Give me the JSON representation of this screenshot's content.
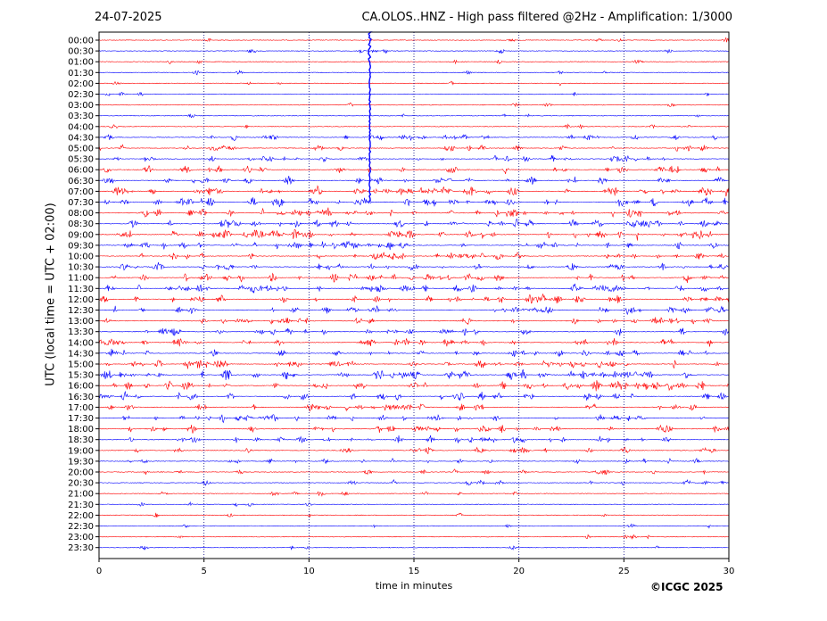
{
  "header": {
    "date": "24-07-2025",
    "title": "CA.OLOS..HNZ - High pass filtered @2Hz - Amplification: 1/3000"
  },
  "copyright": "©ICGC 2025",
  "chart_data": {
    "type": "line",
    "title": "CA.OLOS..HNZ - High pass filtered @2Hz - Amplification: 1/3000",
    "xlabel": "time in minutes",
    "ylabel": "UTC (local time = UTC + 02:00)",
    "xlim": [
      0,
      30
    ],
    "xticks": [
      0,
      5,
      10,
      15,
      20,
      25,
      30
    ],
    "vertical_gridlines": [
      5,
      10,
      15,
      20,
      25
    ],
    "trace_labels": [
      "00:00",
      "00:30",
      "01:00",
      "01:30",
      "02:00",
      "02:30",
      "03:00",
      "03:30",
      "04:00",
      "04:30",
      "05:00",
      "05:30",
      "06:00",
      "06:30",
      "07:00",
      "07:30",
      "08:00",
      "08:30",
      "09:00",
      "09:30",
      "10:00",
      "10:30",
      "11:00",
      "11:30",
      "12:00",
      "12:30",
      "13:00",
      "13:30",
      "14:00",
      "14:30",
      "15:00",
      "15:30",
      "16:00",
      "16:30",
      "17:00",
      "17:30",
      "18:00",
      "18:30",
      "19:00",
      "19:30",
      "20:00",
      "20:30",
      "21:00",
      "21:30",
      "22:00",
      "22:30",
      "23:00",
      "23:30"
    ],
    "colors": {
      "even_traces": "#ff0000",
      "odd_traces": "#0000ff",
      "grid": "#000080"
    },
    "activity": [
      0.1,
      0.15,
      0.1,
      0.1,
      0.1,
      0.1,
      0.1,
      0.1,
      0.15,
      0.5,
      0.5,
      0.6,
      0.7,
      0.7,
      1.0,
      1.0,
      1.0,
      0.8,
      1.0,
      0.8,
      0.7,
      0.7,
      0.8,
      0.9,
      0.8,
      0.7,
      0.6,
      0.6,
      0.7,
      0.7,
      0.9,
      1.0,
      1.0,
      0.8,
      0.6,
      0.7,
      0.8,
      0.6,
      0.5,
      0.4,
      0.3,
      0.3,
      0.2,
      0.1,
      0.1,
      0.1,
      0.1,
      0.1
    ],
    "spike": {
      "trace": "00:00",
      "minute": 12.9,
      "end_trace": "07:30",
      "color": "#0000ff"
    },
    "legend": "none",
    "grid": true
  }
}
